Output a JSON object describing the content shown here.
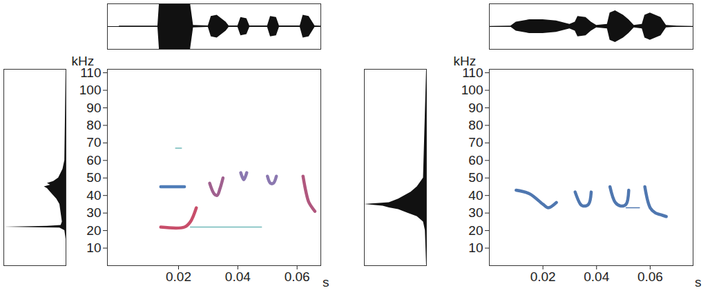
{
  "chart_data": [
    {
      "type": "spectrogram",
      "xlabel": "s",
      "ylabel": "kHz",
      "xlim": [
        -0.004,
        0.068
      ],
      "xticks": [
        0.02,
        0.04,
        0.06
      ],
      "ylim": [
        0,
        112
      ],
      "yticks": [
        10,
        20,
        30,
        40,
        50,
        60,
        70,
        80,
        90,
        100,
        110
      ],
      "waveform": {
        "amplitude_lim": [
          -1,
          1
        ],
        "x": [
          0.0,
          0.013,
          0.0135,
          0.024,
          0.025,
          0.03,
          0.031,
          0.033,
          0.036,
          0.037,
          0.04,
          0.041,
          0.043,
          0.044,
          0.05,
          0.051,
          0.053,
          0.054,
          0.061,
          0.062,
          0.064,
          0.066,
          0.068
        ],
        "amplitude": [
          0.02,
          0.02,
          1,
          1,
          0.05,
          0.03,
          0.45,
          0.5,
          0.2,
          0.03,
          0.03,
          0.4,
          0.35,
          0.03,
          0.03,
          0.45,
          0.4,
          0.03,
          0.03,
          0.5,
          0.45,
          0.03,
          0.02
        ]
      },
      "spectrum": {
        "power_lim": [
          0,
          1
        ],
        "kHz": [
          0,
          15,
          20,
          21.5,
          22,
          22.5,
          23,
          25,
          30,
          35,
          38,
          40,
          42,
          44,
          45,
          46,
          47,
          48,
          50,
          55,
          60,
          112
        ],
        "power": [
          0,
          0,
          0.02,
          0.1,
          1,
          0.3,
          0.08,
          0.06,
          0.08,
          0.1,
          0.15,
          0.2,
          0.25,
          0.3,
          0.35,
          0.25,
          0.3,
          0.2,
          0.12,
          0.05,
          0.02,
          0
        ]
      },
      "series": [
        {
          "color": "#4f7db8",
          "x": [
            0.014,
            0.022
          ],
          "y": [
            45,
            45
          ]
        },
        {
          "color": "#c84e6a",
          "x": [
            0.014,
            0.022,
            0.024,
            0.026
          ],
          "y": [
            22,
            22,
            25,
            33
          ]
        },
        {
          "color": "#6fb8b8",
          "line_style": "thin",
          "x": [
            0.024,
            0.048
          ],
          "y": [
            22,
            22
          ]
        },
        {
          "color": "#6fb8b8",
          "line_style": "thin",
          "x": [
            0.019,
            0.021
          ],
          "y": [
            67,
            67
          ]
        },
        {
          "color": "#a0608f",
          "x": [
            0.0305,
            0.032,
            0.033,
            0.034,
            0.035
          ],
          "y": [
            47,
            41,
            40,
            44,
            50
          ]
        },
        {
          "color": "#8b78b0",
          "x": [
            0.041,
            0.042,
            0.043
          ],
          "y": [
            53,
            49,
            53
          ]
        },
        {
          "color": "#8b78b0",
          "x": [
            0.05,
            0.051,
            0.052,
            0.053
          ],
          "y": [
            51,
            47,
            47,
            51
          ]
        },
        {
          "color": "#b0577e",
          "x": [
            0.062,
            0.063,
            0.064,
            0.066
          ],
          "y": [
            51,
            42,
            36,
            31
          ]
        }
      ]
    },
    {
      "type": "spectrogram",
      "xlabel": "s",
      "ylabel": "kHz",
      "xlim": [
        0,
        0.076
      ],
      "xticks": [
        0.02,
        0.04,
        0.06
      ],
      "ylim": [
        0,
        112
      ],
      "yticks": [
        10,
        20,
        30,
        40,
        50,
        60,
        70,
        80,
        90,
        100,
        110
      ],
      "waveform": {
        "amplitude_lim": [
          -1,
          1
        ],
        "x": [
          0,
          0.008,
          0.01,
          0.015,
          0.02,
          0.025,
          0.03,
          0.032,
          0.033,
          0.036,
          0.038,
          0.04,
          0.044,
          0.045,
          0.047,
          0.05,
          0.052,
          0.054,
          0.057,
          0.058,
          0.06,
          0.064,
          0.066,
          0.07,
          0.076
        ],
        "amplitude": [
          0.01,
          0.02,
          0.2,
          0.3,
          0.3,
          0.25,
          0.1,
          0.2,
          0.45,
          0.4,
          0.2,
          0.05,
          0.1,
          0.6,
          0.7,
          0.5,
          0.3,
          0.05,
          0.1,
          0.5,
          0.6,
          0.4,
          0.05,
          0.02,
          0.01
        ]
      },
      "spectrum": {
        "power_lim": [
          0,
          1
        ],
        "kHz": [
          0,
          20,
          25,
          28,
          30,
          32,
          33,
          34,
          35,
          36,
          38,
          40,
          42,
          45,
          50,
          112
        ],
        "power": [
          0,
          0.02,
          0.05,
          0.15,
          0.3,
          0.45,
          0.6,
          0.7,
          1,
          0.6,
          0.45,
          0.35,
          0.25,
          0.15,
          0.05,
          0
        ]
      },
      "series": [
        {
          "color": "#4f77b0",
          "x": [
            0.01,
            0.015,
            0.02,
            0.022,
            0.025
          ],
          "y": [
            43,
            41,
            35,
            33,
            36
          ]
        },
        {
          "color": "#4f77b0",
          "x": [
            0.032,
            0.034,
            0.035,
            0.037,
            0.038
          ],
          "y": [
            42,
            35,
            34,
            35,
            42
          ]
        },
        {
          "color": "#4f77b0",
          "x": [
            0.045,
            0.047,
            0.049,
            0.051,
            0.052
          ],
          "y": [
            45,
            36,
            34,
            35,
            43
          ]
        },
        {
          "color": "#4f77b0",
          "line_style": "thin",
          "x": [
            0.051,
            0.056
          ],
          "y": [
            33,
            33
          ]
        },
        {
          "color": "#4f77b0",
          "x": [
            0.058,
            0.06,
            0.062,
            0.064,
            0.066
          ],
          "y": [
            45,
            33,
            30,
            29,
            28
          ]
        }
      ]
    }
  ]
}
